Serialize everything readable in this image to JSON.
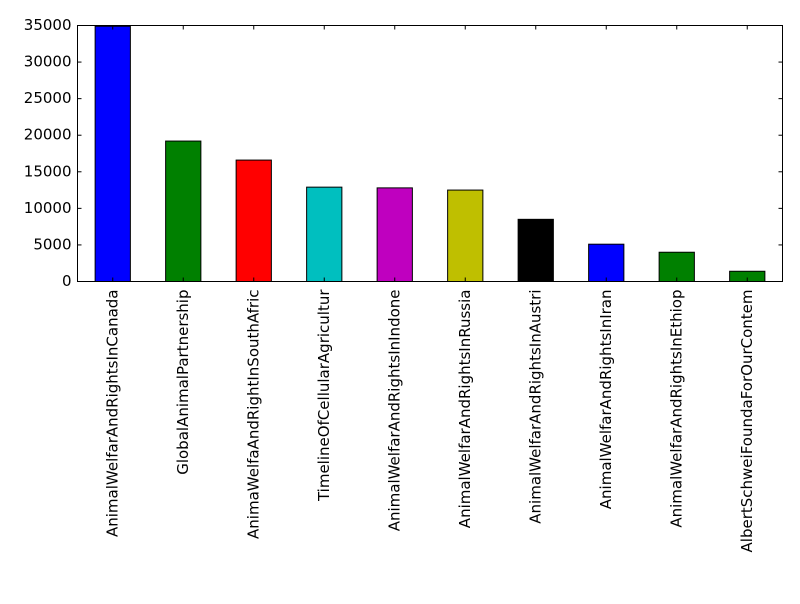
{
  "chart_data": {
    "type": "bar",
    "title": "",
    "xlabel": "",
    "ylabel": "",
    "ylim": [
      0,
      35000
    ],
    "yticks": [
      0,
      5000,
      10000,
      15000,
      20000,
      25000,
      30000,
      35000
    ],
    "grid": false,
    "legend": "none",
    "categories": [
      "AnimalWelfarAndRightsInCanada",
      "GlobalAnimalPartnership",
      "AnimaWelfaAndRightInSouthAfric",
      "TimelineOfCellularAgricultur",
      "AnimalWelfarAndRightsInIndone",
      "AnimalWelfarAndRightsInRussia",
      "AnimalWelfarAndRightsInAustri",
      "AnimalWelfarAndRightsInIran",
      "AnimalWelfarAndRightsInEthiop",
      "AlbertSchweiFoundaForOurContem"
    ],
    "values": [
      34900,
      19200,
      16600,
      12900,
      12800,
      12500,
      8500,
      5100,
      4000,
      1400
    ],
    "colors": [
      "#0000ff",
      "#008000",
      "#ff0000",
      "#00bfbf",
      "#bf00bf",
      "#bfbf00",
      "#000000",
      "#0000ff",
      "#008000",
      "#008000"
    ]
  }
}
